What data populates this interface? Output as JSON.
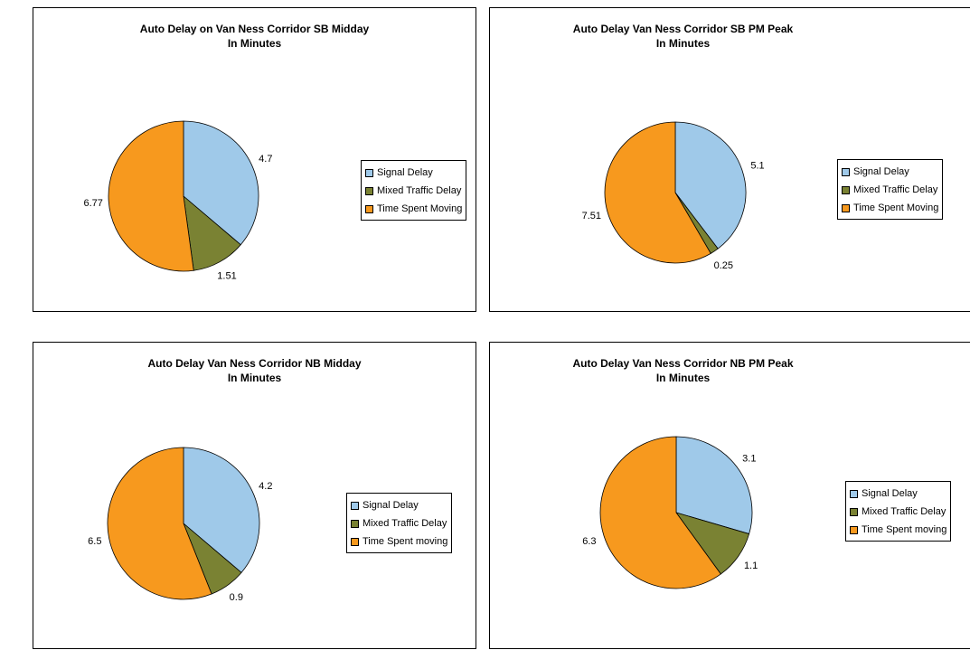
{
  "charts": [
    {
      "type": "pie",
      "title": "Auto Delay on Van Ness Corridor SB Midday",
      "subtitle": "In Minutes",
      "legend_position": "right",
      "slices": [
        {
          "name": "Signal Delay",
          "value": 4.7,
          "label": "4.7",
          "color": "#9fc9e9"
        },
        {
          "name": "Mixed Traffic Delay",
          "value": 1.51,
          "label": "1.51",
          "color": "#7a8233"
        },
        {
          "name": "Time Spent Moving",
          "value": 6.77,
          "label": "6.77",
          "color": "#f7991e"
        }
      ]
    },
    {
      "type": "pie",
      "title": "Auto Delay Van Ness Corridor SB PM Peak",
      "subtitle": "In Minutes",
      "legend_position": "right",
      "slices": [
        {
          "name": "Signal Delay",
          "value": 5.1,
          "label": "5.1",
          "color": "#9fc9e9"
        },
        {
          "name": "Mixed Traffic Delay",
          "value": 0.25,
          "label": "0.25",
          "color": "#7a8233"
        },
        {
          "name": "Time Spent Moving",
          "value": 7.51,
          "label": "7.51",
          "color": "#f7991e"
        }
      ]
    },
    {
      "type": "pie",
      "title": "Auto Delay Van Ness Corridor NB Midday",
      "subtitle": "In Minutes",
      "legend_position": "right",
      "slices": [
        {
          "name": "Signal Delay",
          "value": 4.2,
          "label": "4.2",
          "color": "#9fc9e9"
        },
        {
          "name": "Mixed Traffic Delay",
          "value": 0.9,
          "label": "0.9",
          "color": "#7a8233"
        },
        {
          "name": "Time Spent moving",
          "value": 6.5,
          "label": "6.5",
          "color": "#f7991e"
        }
      ]
    },
    {
      "type": "pie",
      "title": "Auto Delay Van Ness Corridor NB PM Peak",
      "subtitle": "In Minutes",
      "legend_position": "right",
      "slices": [
        {
          "name": "Signal Delay",
          "value": 3.1,
          "label": "3.1",
          "color": "#9fc9e9"
        },
        {
          "name": "Mixed Traffic Delay",
          "value": 1.1,
          "label": "1.1",
          "color": "#7a8233"
        },
        {
          "name": "Time Spent moving",
          "value": 6.3,
          "label": "6.3",
          "color": "#f7991e"
        }
      ]
    }
  ],
  "chart_data": [
    {
      "type": "pie",
      "title": "Auto Delay on Van Ness Corridor SB Midday",
      "subtitle": "In Minutes",
      "categories": [
        "Signal Delay",
        "Mixed Traffic Delay",
        "Time Spent Moving"
      ],
      "values": [
        4.7,
        1.51,
        6.77
      ],
      "legend": "right"
    },
    {
      "type": "pie",
      "title": "Auto Delay Van Ness Corridor SB PM Peak",
      "subtitle": "In Minutes",
      "categories": [
        "Signal Delay",
        "Mixed Traffic Delay",
        "Time Spent Moving"
      ],
      "values": [
        5.1,
        0.25,
        7.51
      ],
      "legend": "right"
    },
    {
      "type": "pie",
      "title": "Auto Delay Van Ness Corridor NB Midday",
      "subtitle": "In Minutes",
      "categories": [
        "Signal Delay",
        "Mixed Traffic Delay",
        "Time Spent moving"
      ],
      "values": [
        4.2,
        0.9,
        6.5
      ],
      "legend": "right"
    },
    {
      "type": "pie",
      "title": "Auto Delay Van Ness Corridor NB PM Peak",
      "subtitle": "In Minutes",
      "categories": [
        "Signal Delay",
        "Mixed Traffic Delay",
        "Time Spent moving"
      ],
      "values": [
        3.1,
        1.1,
        6.3
      ],
      "legend": "right"
    }
  ]
}
